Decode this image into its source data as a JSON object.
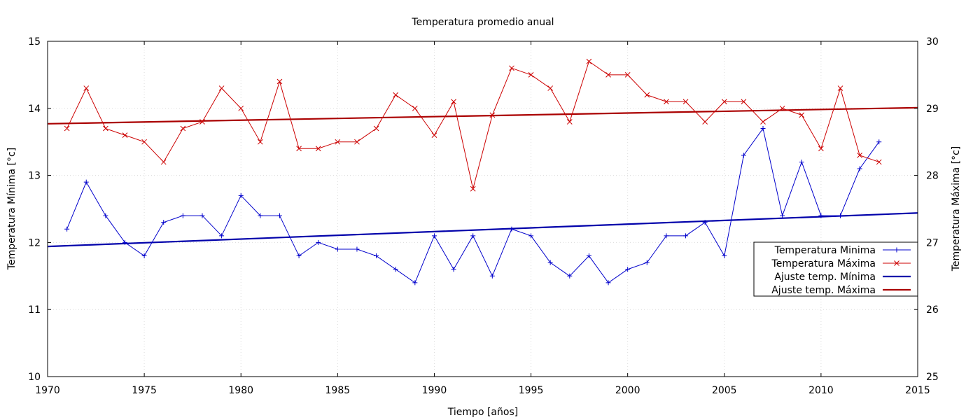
{
  "chart_data": {
    "type": "line",
    "title": "Temperatura promedio anual",
    "xlabel": "Tiempo [años]",
    "ylabel_left": "Temperatura Mínima [°c]",
    "ylabel_right": "Temperatura Máxima [°c]",
    "xlim": [
      1970,
      2015
    ],
    "ylim_left": [
      10,
      15
    ],
    "ylim_right": [
      25,
      30
    ],
    "x_ticks": [
      1970,
      1975,
      1980,
      1985,
      1990,
      1995,
      2000,
      2005,
      2010,
      2015
    ],
    "y_ticks_left": [
      10,
      11,
      12,
      13,
      14,
      15
    ],
    "y_ticks_right": [
      25,
      26,
      27,
      28,
      29,
      30
    ],
    "grid": true,
    "legend_position": "right",
    "x": [
      1971,
      1972,
      1973,
      1974,
      1975,
      1976,
      1977,
      1978,
      1979,
      1980,
      1981,
      1982,
      1983,
      1984,
      1985,
      1986,
      1987,
      1988,
      1989,
      1990,
      1991,
      1992,
      1993,
      1994,
      1995,
      1996,
      1997,
      1998,
      1999,
      2000,
      2001,
      2002,
      2003,
      2004,
      2005,
      2006,
      2007,
      2008,
      2009,
      2010,
      2011,
      2012,
      2013
    ],
    "series": [
      {
        "name": "Temperatura Minima",
        "axis": "left",
        "color": "#0000cc",
        "marker": "plus",
        "values": [
          12.2,
          12.9,
          12.4,
          12.0,
          11.8,
          12.3,
          12.4,
          12.4,
          12.1,
          12.7,
          12.4,
          12.4,
          11.8,
          12.0,
          11.9,
          11.9,
          11.8,
          11.6,
          11.4,
          12.1,
          11.6,
          12.1,
          11.5,
          12.2,
          12.1,
          11.7,
          11.5,
          11.8,
          11.4,
          11.6,
          11.7,
          12.1,
          12.1,
          12.3,
          11.8,
          13.3,
          13.7,
          12.4,
          13.2,
          12.4,
          12.4,
          13.1,
          13.5
        ]
      },
      {
        "name": "Temperatura Máxima",
        "axis": "right",
        "color": "#cc0000",
        "marker": "x",
        "values": [
          28.7,
          29.3,
          28.7,
          28.6,
          28.5,
          28.2,
          28.7,
          28.8,
          29.3,
          29.0,
          28.5,
          29.4,
          28.4,
          28.4,
          28.5,
          28.5,
          28.7,
          29.2,
          29.0,
          28.6,
          29.1,
          27.8,
          28.9,
          29.6,
          29.5,
          29.3,
          28.8,
          29.7,
          29.5,
          29.5,
          29.2,
          29.1,
          29.1,
          28.8,
          29.1,
          29.1,
          28.8,
          29.0,
          28.9,
          28.4,
          29.3,
          28.3,
          28.2
        ]
      }
    ],
    "fits": [
      {
        "name": "Ajuste temp. Mínima",
        "axis": "left",
        "color": "#0000aa",
        "x": [
          1970,
          2015
        ],
        "values": [
          11.94,
          12.44
        ]
      },
      {
        "name": "Ajuste temp. Máxima",
        "axis": "right",
        "color": "#aa0000",
        "x": [
          1970,
          2015
        ],
        "values": [
          28.77,
          29.01
        ]
      }
    ]
  }
}
